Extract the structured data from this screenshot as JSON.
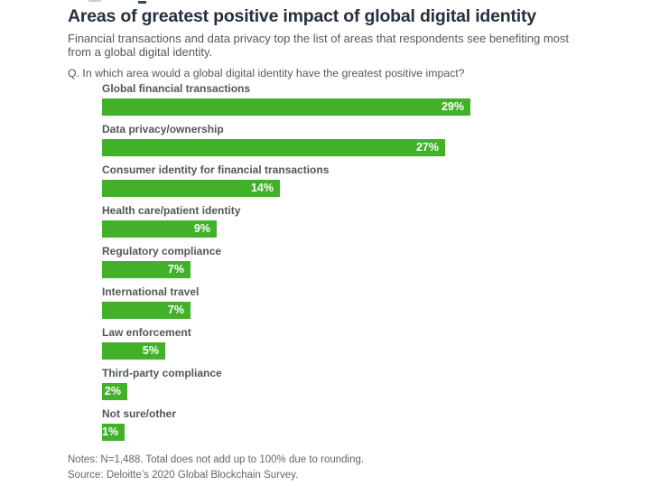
{
  "figure": {
    "title": "Areas of greatest positive impact of global digital identity",
    "subtitle_line1": "Financial transactions and data privacy top the list of areas that respondents see benefiting most",
    "subtitle_line2": "from a global digital identity.",
    "question": "Q. In which area would a global digital identity have the greatest positive impact?",
    "notes": "Notes: N=1,488. Total does not add up to 100% due to rounding.",
    "source": "Source: Deloitte’s 2020 Global Blockchain Survey."
  },
  "colors": {
    "bar_green": "#43b02a",
    "title_text": "#26303e",
    "body_text": "#55585d",
    "value_label_text": "#ffffff"
  },
  "chart_data": {
    "type": "bar",
    "orientation": "horizontal",
    "title": "Areas of greatest positive impact of global digital identity",
    "xlabel": "",
    "ylabel": "",
    "xlim": [
      0,
      40
    ],
    "grid": false,
    "legend": "none",
    "bar_color": "#43b02a",
    "categories": [
      "Global financial transactions",
      "Data privacy/ownership",
      "Consumer identity for financial transactions",
      "Health care/patient identity",
      "Regulatory compliance",
      "International travel",
      "Law enforcement",
      "Third-party compliance",
      "Not sure/other"
    ],
    "values": [
      29,
      27,
      14,
      9,
      7,
      7,
      5,
      2,
      1
    ],
    "value_labels": [
      "29%",
      "27%",
      "14%",
      "9%",
      "7%",
      "7%",
      "5%",
      "2%",
      "1%"
    ]
  }
}
